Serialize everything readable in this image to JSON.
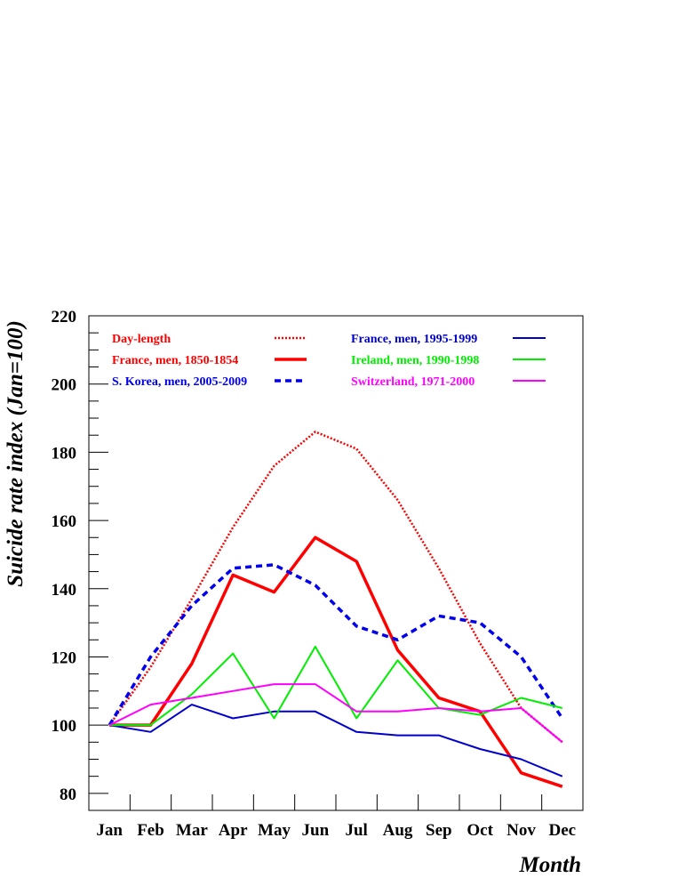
{
  "chart_data": {
    "type": "line",
    "xlabel": "Month",
    "ylabel": "Suicide rate index (Jan=100)",
    "categories": [
      "Jan",
      "Feb",
      "Mar",
      "Apr",
      "May",
      "Jun",
      "Jul",
      "Aug",
      "Sep",
      "Oct",
      "Nov",
      "Dec"
    ],
    "ylim": [
      75,
      220
    ],
    "yticks": [
      80,
      100,
      120,
      140,
      160,
      180,
      200,
      220
    ],
    "grid": false,
    "legend": "top",
    "series": [
      {
        "name": "Day-length",
        "color": "#ff0000",
        "style": "dotted",
        "values": [
          100,
          117,
          137,
          158,
          176,
          186,
          181,
          166,
          146,
          124,
          105,
          95
        ]
      },
      {
        "name": "France, men, 1850-1854",
        "color": "#ff0000",
        "style": "thick",
        "values": [
          100,
          100,
          118,
          144,
          139,
          155,
          148,
          122,
          108,
          104,
          86,
          82
        ]
      },
      {
        "name": "S. Korea, men, 2005-2009",
        "color": "#0000ee",
        "style": "dashed",
        "values": [
          100,
          120,
          135,
          146,
          147,
          141,
          129,
          125,
          132,
          130,
          120,
          102
        ]
      },
      {
        "name": "France, men, 1995-1999",
        "color": "#0000cc",
        "style": "solid",
        "values": [
          100,
          98,
          106,
          102,
          104,
          104,
          98,
          97,
          97,
          93,
          90,
          85
        ]
      },
      {
        "name": "Ireland, men, 1990-1998",
        "color": "#00ee00",
        "style": "solid",
        "values": [
          100,
          100,
          109,
          121,
          102,
          123,
          102,
          119,
          105,
          103,
          108,
          105
        ]
      },
      {
        "name": "Switzerland, 1971-2000",
        "color": "#ff00ff",
        "style": "solid",
        "values": [
          100,
          106,
          108,
          110,
          112,
          112,
          104,
          104,
          105,
          104,
          105,
          95
        ]
      }
    ]
  }
}
